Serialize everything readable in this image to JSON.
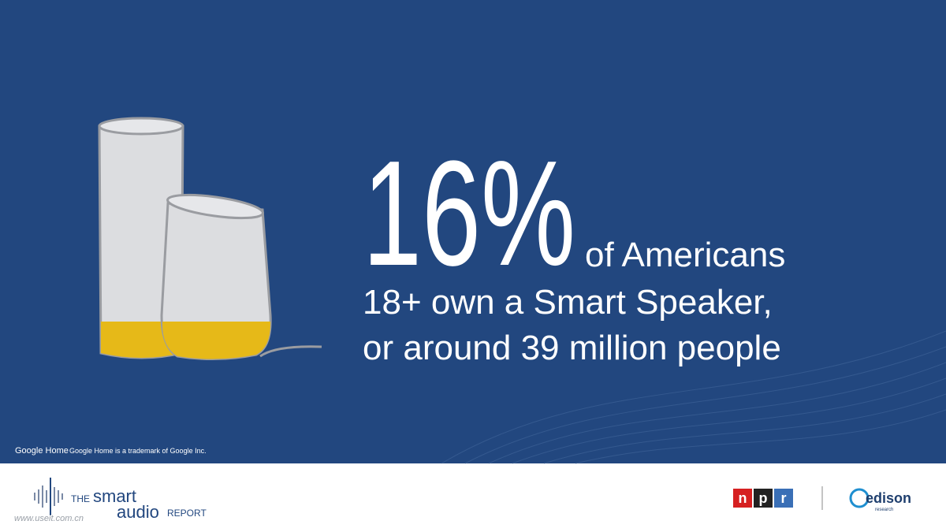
{
  "headline": {
    "stat": "16%",
    "lead": "of Americans",
    "line2": "18+ own a Smart Speaker,",
    "line3": "or around 39 million people"
  },
  "trademark": {
    "brand": "Google Home",
    "note": "Google Home is a trademark of Google Inc."
  },
  "footer": {
    "logo": {
      "the": "THE",
      "smart": "smart",
      "audio": "audio",
      "report": "REPORT"
    },
    "npr": [
      "n",
      "p",
      "r"
    ],
    "edison": {
      "name": "edison",
      "sub": "research"
    },
    "watermark": "www.useit.com.cn"
  }
}
